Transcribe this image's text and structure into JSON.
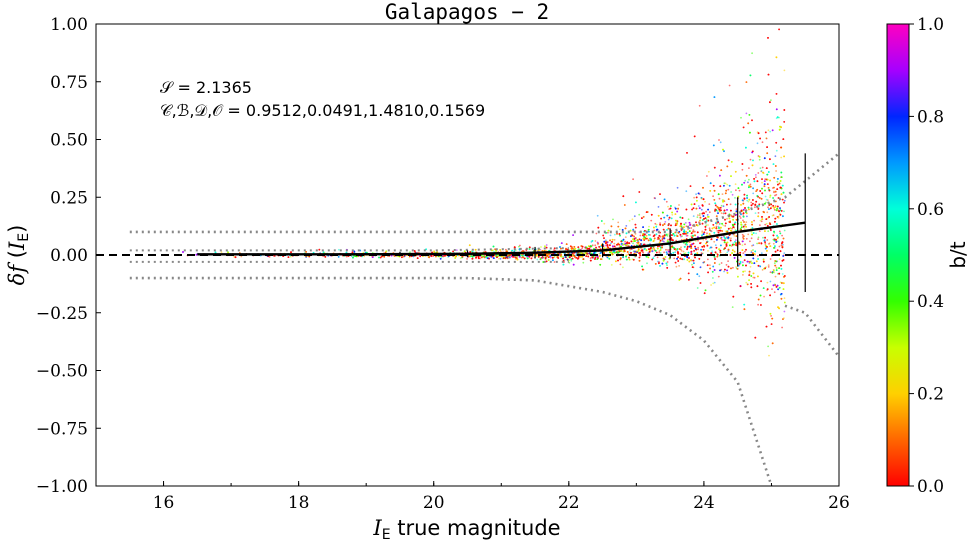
{
  "chart_data": {
    "type": "scatter",
    "title": "Galapagos − 2",
    "xlabel": "I_E true magnitude",
    "xlabel_symbol": "I",
    "xlabel_sub": "E",
    "xlabel_rest": " true magnitude",
    "ylabel": "δf (I_E)",
    "ylabel_symbol": "δf",
    "ylabel_inner": "I",
    "ylabel_sub": "E",
    "xlim": [
      15,
      26
    ],
    "ylim": [
      -1.0,
      1.0
    ],
    "x_ticks": [
      16,
      18,
      20,
      22,
      24,
      26
    ],
    "y_ticks": [
      "1.00",
      "0.75",
      "0.50",
      "0.25",
      "0.00",
      "−0.25",
      "−0.50",
      "−0.75",
      "−1.00"
    ],
    "y_tick_values": [
      1.0,
      0.75,
      0.5,
      0.25,
      0.0,
      -0.25,
      -0.5,
      -0.75,
      -1.0
    ],
    "annotation_S": "𝒮 = 2.1365",
    "annotation_CBDO": "𝒞,ℬ,𝒟,𝒪 = 0.9512,0.0491,1.4810,0.1569",
    "colorbar": {
      "label": "b/t",
      "range": [
        0.0,
        1.0
      ],
      "ticks": [
        "1.0",
        "0.8",
        "0.6",
        "0.4",
        "0.2",
        "0.0"
      ],
      "tick_values": [
        1.0,
        0.8,
        0.6,
        0.4,
        0.2,
        0.0
      ],
      "colormap": "gist_rainbow_r"
    },
    "grid": false,
    "scatter_x_range": [
      15.5,
      25.2
    ],
    "median_curve": {
      "x": [
        16.5,
        17.5,
        18.5,
        19.5,
        20.5,
        21.5,
        22.5,
        23.5,
        24.5,
        25.5
      ],
      "y": [
        0.003,
        0.003,
        0.003,
        0.004,
        0.005,
        0.01,
        0.02,
        0.05,
        0.1,
        0.14
      ],
      "err": [
        0.002,
        0.003,
        0.005,
        0.01,
        0.015,
        0.025,
        0.03,
        0.065,
        0.15,
        0.3
      ]
    },
    "err_bar_x": [
      19.5,
      20.5,
      21.5,
      22.5,
      23.5,
      24.5,
      25.5
    ],
    "dotted_upper": {
      "x": [
        15.5,
        16.5,
        17.5,
        18.5,
        19.5,
        20.5,
        21.5,
        22.5,
        23.5,
        24.5,
        25.2,
        25.5,
        26.0
      ],
      "y": [
        0.1,
        0.1,
        0.1,
        0.1,
        0.1,
        0.1,
        0.1,
        0.1,
        0.1,
        0.18,
        0.25,
        0.32,
        0.44
      ]
    },
    "dotted_lower": {
      "x": [
        15.5,
        16.5,
        17.5,
        18.5,
        19.5,
        20.5,
        21.5,
        22.5,
        23.0,
        23.5,
        24.0,
        24.5,
        25.0
      ],
      "y": [
        -0.1,
        -0.1,
        -0.1,
        -0.1,
        -0.1,
        -0.1,
        -0.11,
        -0.16,
        -0.2,
        -0.26,
        -0.37,
        -0.55,
        -1.0
      ]
    },
    "dotted_lower_right": {
      "x": [
        25.2,
        25.5,
        26.0
      ],
      "y": [
        -0.22,
        -0.25,
        -0.44
      ]
    },
    "dotted_mid": {
      "x": [
        15.5,
        18.0,
        20.0,
        21.0,
        22.0
      ],
      "y": [
        0.02,
        0.02,
        0.02,
        0.025,
        0.03
      ],
      "y2": [
        -0.03,
        -0.03,
        -0.03,
        -0.03,
        -0.03
      ]
    },
    "zero_line_y": 0.0
  }
}
